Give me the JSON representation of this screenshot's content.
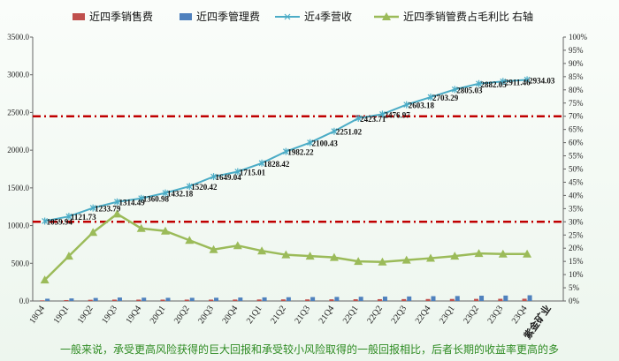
{
  "caption": "一般来说，承受更高风险获得的巨大回报和承受较小风险取得的一般回报相比，后者长期的收益率更高的多",
  "colors": {
    "sales": "#c0504d",
    "mgmt": "#4f81bd",
    "revenue": "#4bacc6",
    "ratio": "#9bbb59",
    "refline": "#c00000"
  },
  "chart_data": {
    "type": "bar+line",
    "categories": [
      "18Q4",
      "19Q1",
      "19Q2",
      "19Q3",
      "19Q4",
      "20Q1",
      "20Q2",
      "20Q3",
      "20Q4",
      "21Q1",
      "21Q2",
      "21Q3",
      "21Q4",
      "22Q1",
      "22Q2",
      "22Q3",
      "22Q4",
      "23Q1",
      "23Q2",
      "23Q3",
      "23Q4"
    ],
    "extra_x_label": "紫金矿业",
    "ylim": [
      0,
      3500
    ],
    "yticks": [
      "0.0",
      "500.0",
      "1000.0",
      "1500.0",
      "2000.0",
      "2500.0",
      "3000.0",
      "3500.0"
    ],
    "y2lim": [
      0,
      100
    ],
    "y2ticks": [
      "0%",
      "5%",
      "10%",
      "15%",
      "20%",
      "25%",
      "30%",
      "35%",
      "40%",
      "45%",
      "50%",
      "55%",
      "60%",
      "65%",
      "70%",
      "75%",
      "80%",
      "85%",
      "90%",
      "95%",
      "100%"
    ],
    "legend": {
      "position": "top",
      "entries": [
        "近四季销售费",
        "近四季管理费",
        "近4季营收",
        "近四季销管费占毛利比  右轴"
      ]
    },
    "series": [
      {
        "name": "近四季销售费",
        "type": "bar",
        "axis": "left",
        "values": [
          8,
          12,
          16,
          18,
          18,
          18,
          18,
          18,
          19,
          20,
          21,
          21,
          22,
          23,
          24,
          25,
          26,
          27,
          28,
          29,
          30
        ]
      },
      {
        "name": "近四季管理费",
        "type": "bar",
        "axis": "left",
        "values": [
          30,
          34,
          40,
          46,
          44,
          42,
          42,
          43,
          46,
          48,
          50,
          52,
          54,
          56,
          58,
          60,
          64,
          66,
          70,
          72,
          76
        ]
      },
      {
        "name": "近4季营收",
        "type": "line",
        "axis": "left",
        "values": [
          1059.94,
          1121.73,
          1233.79,
          1314.49,
          1360.98,
          1432.18,
          1520.42,
          1649.04,
          1715.01,
          1828.42,
          1982.22,
          2100.43,
          2251.02,
          2423.71,
          2476.97,
          2603.18,
          2703.29,
          2805.03,
          2882.05,
          2911.46,
          2934.03
        ],
        "labels": [
          "1059.94",
          "1121.73",
          "1233.79",
          "1314.49",
          "1360.98",
          "1432.18",
          "1520.42",
          "1649.04",
          "1715.01",
          "1828.42",
          "1982.22",
          "2100.43",
          "2251.02",
          "2423.71",
          "2476.97",
          "2603.18",
          "2703.29",
          "2805.03",
          "2882.05",
          "2911.46",
          "2934.03"
        ]
      },
      {
        "name": "近四季销管费占毛利比  右轴",
        "type": "line",
        "axis": "right",
        "values": [
          8,
          17,
          26,
          33,
          27.5,
          26.5,
          23,
          19.5,
          21,
          19,
          17.5,
          17,
          16.5,
          15,
          14.8,
          15.5,
          16.2,
          17,
          18,
          17.8,
          17.8
        ]
      }
    ],
    "reference_lines": [
      {
        "axis": "right",
        "value": 70
      },
      {
        "axis": "right",
        "value": 30
      }
    ],
    "grid": false
  }
}
